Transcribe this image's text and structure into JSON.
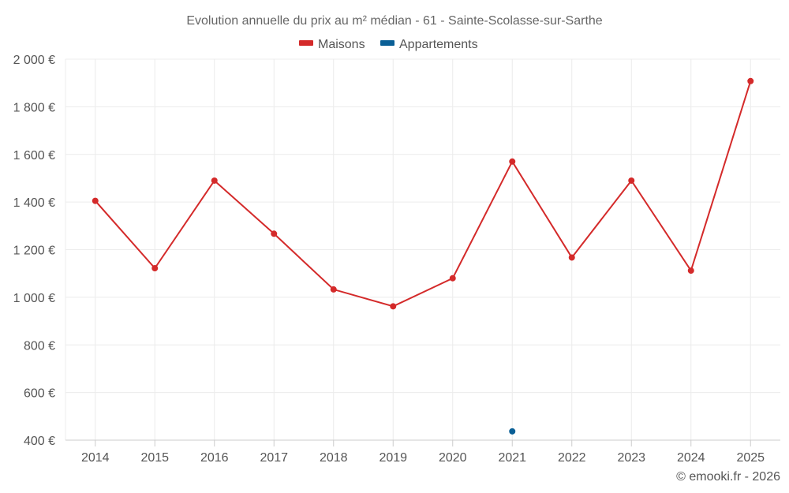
{
  "chart_data": {
    "type": "line",
    "title": "Evolution annuelle du prix au m² médian - 61 - Sainte-Scolasse-sur-Sarthe",
    "categories": [
      "2014",
      "2015",
      "2016",
      "2017",
      "2018",
      "2019",
      "2020",
      "2021",
      "2022",
      "2023",
      "2024",
      "2025"
    ],
    "ylim": [
      400,
      2000
    ],
    "yticks": [
      400,
      600,
      800,
      1000,
      1200,
      1400,
      1600,
      1800,
      2000
    ],
    "ytick_labels": [
      "400 €",
      "600 €",
      "800 €",
      "1 000 €",
      "1 200 €",
      "1 400 €",
      "1 600 €",
      "1 800 €",
      "2 000 €"
    ],
    "grid": true,
    "legend_position": "top-center",
    "series": [
      {
        "name": "Maisons",
        "color": "#d42a2a",
        "values": [
          1405,
          1122,
          1490,
          1267,
          1033,
          962,
          1080,
          1570,
          1167,
          1490,
          1112,
          1908
        ]
      },
      {
        "name": "Appartements",
        "color": "#0a5f96",
        "values": [
          null,
          null,
          null,
          null,
          null,
          null,
          null,
          437,
          null,
          null,
          null,
          null
        ]
      }
    ],
    "credit": "© emooki.fr - 2026"
  }
}
